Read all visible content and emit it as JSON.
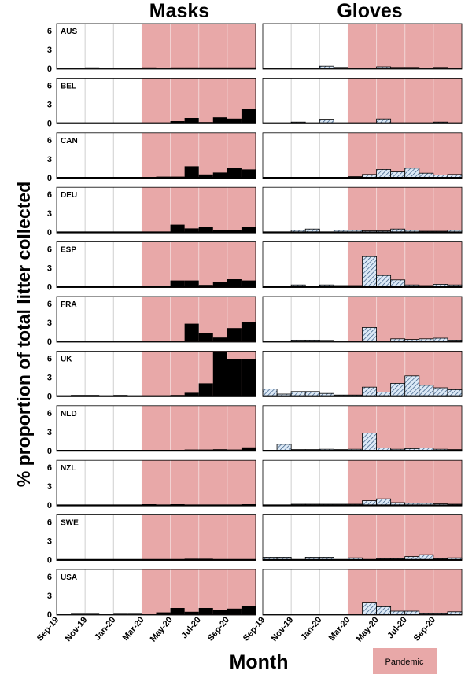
{
  "figure": {
    "ylabel": "% proportion of total litter collected",
    "xlabel": "Month",
    "legend_label": "Pandemic",
    "legend_placement": "bottom-right"
  },
  "colors": {
    "pandemic_shading": "#e8a8a8",
    "mask_bar": "#000000",
    "glove_bar_fill": "#dce9f6",
    "glove_bar_hatch": "#2a4f7a",
    "grid": "#cfcfcf",
    "frame": "#000000"
  },
  "chart_data": {
    "type": "bar",
    "panel_titles": [
      "Masks",
      "Gloves"
    ],
    "months": [
      "Sep-19",
      "Oct-19",
      "Nov-19",
      "Dec-19",
      "Jan-20",
      "Feb-20",
      "Mar-20",
      "Apr-20",
      "May-20",
      "Jun-20",
      "Jul-20",
      "Aug-20",
      "Sep-20",
      "Oct-20"
    ],
    "x_tick_labels": [
      "Sep-19",
      "Nov-19",
      "Jan-20",
      "Mar-20",
      "May-20",
      "Jul-20",
      "Sep-20"
    ],
    "y_ticks": [
      "0",
      "3",
      "6"
    ],
    "ylim": [
      0,
      7
    ],
    "pandemic_start": "Mar-20",
    "grid": true,
    "countries": [
      {
        "code": "AUS",
        "masks": [
          0,
          0,
          0.15,
          0,
          0,
          0,
          0.15,
          0,
          0.1,
          0.1,
          0.1,
          0.1,
          0.1,
          0.1
        ],
        "gloves": [
          0,
          0,
          0,
          0,
          0.35,
          0.15,
          0,
          0,
          0.25,
          0.15,
          0.15,
          0,
          0.15,
          0
        ]
      },
      {
        "code": "BEL",
        "masks": [
          0,
          0,
          0,
          0,
          0,
          0,
          0,
          0,
          0.3,
          0.8,
          0.1,
          0.9,
          0.7,
          2.3
        ],
        "gloves": [
          0,
          0,
          0.15,
          0,
          0.6,
          0,
          0,
          0,
          0.65,
          0,
          0,
          0,
          0.15,
          0
        ]
      },
      {
        "code": "CAN",
        "masks": [
          0,
          0,
          0,
          0,
          0,
          0,
          0,
          0.05,
          0.1,
          1.8,
          0.5,
          0.8,
          1.5,
          1.3
        ],
        "gloves": [
          0,
          0,
          0,
          0,
          0,
          0,
          0.05,
          0.5,
          1.3,
          0.9,
          1.5,
          0.7,
          0.4,
          0.5
        ]
      },
      {
        "code": "DEU",
        "masks": [
          0,
          0,
          0,
          0,
          0,
          0,
          0,
          0,
          1.2,
          0.6,
          0.9,
          0.3,
          0.3,
          0.8
        ],
        "gloves": [
          0,
          0,
          0.3,
          0.5,
          0,
          0.3,
          0.3,
          0.2,
          0.2,
          0.5,
          0.3,
          0.1,
          0.1,
          0.3
        ]
      },
      {
        "code": "ESP",
        "masks": [
          0,
          0,
          0,
          0,
          0,
          0,
          0,
          0,
          1.0,
          1.0,
          0.3,
          0.8,
          1.2,
          1.0
        ],
        "gloves": [
          0,
          0,
          0.3,
          0,
          0.3,
          0.2,
          0.2,
          4.8,
          1.8,
          1.1,
          0.3,
          0.2,
          0.4,
          0.3
        ]
      },
      {
        "code": "FRA",
        "masks": [
          0,
          0,
          0,
          0,
          0,
          0,
          0,
          0,
          0,
          2.8,
          1.3,
          0.6,
          2.1,
          3.1
        ],
        "gloves": [
          0,
          0,
          0.2,
          0.2,
          0.1,
          0,
          0,
          2.2,
          0,
          0.4,
          0.3,
          0.4,
          0.5,
          0.2
        ]
      },
      {
        "code": "UK",
        "masks": [
          0,
          0.1,
          0.1,
          0,
          0.1,
          0,
          0,
          0,
          0.1,
          0.5,
          2.0,
          7.0,
          5.8,
          5.8
        ],
        "gloves": [
          1.1,
          0.3,
          0.7,
          0.7,
          0.4,
          0.1,
          0.1,
          1.4,
          0.6,
          2.0,
          3.2,
          1.7,
          1.3,
          1.0
        ]
      },
      {
        "code": "NLD",
        "masks": [
          0,
          0,
          0,
          0,
          0,
          0,
          0,
          0,
          0,
          0.05,
          0.1,
          0.2,
          0.1,
          0.5
        ],
        "gloves": [
          0,
          1.0,
          0.1,
          0.1,
          0.2,
          0.1,
          0.2,
          2.8,
          0.4,
          0.2,
          0.3,
          0.4,
          0.2,
          0.1
        ]
      },
      {
        "code": "NZL",
        "masks": [
          0,
          0,
          0,
          0,
          0,
          0,
          0.1,
          0,
          0.1,
          0,
          0,
          0,
          0,
          0.1
        ],
        "gloves": [
          0,
          0,
          0.05,
          0.05,
          0.05,
          0.05,
          0.05,
          0.7,
          1.0,
          0.4,
          0.3,
          0.3,
          0.2,
          0.1
        ]
      },
      {
        "code": "SWE",
        "masks": [
          0,
          0,
          0,
          0,
          0,
          0,
          0,
          0,
          0,
          0.15,
          0.15,
          0,
          0,
          0
        ],
        "gloves": [
          0.4,
          0.4,
          0,
          0.4,
          0.4,
          0,
          0.3,
          0,
          0.1,
          0.1,
          0.5,
          0.8,
          0.1,
          0.3
        ]
      },
      {
        "code": "USA",
        "masks": [
          0,
          0.2,
          0.2,
          0,
          0.2,
          0.2,
          0,
          0.3,
          1.0,
          0.4,
          1.0,
          0.7,
          0.9,
          1.3
        ],
        "gloves": [
          0,
          0,
          0,
          0,
          0,
          0,
          0,
          1.8,
          1.2,
          0.5,
          0.5,
          0.2,
          0.2,
          0.4
        ]
      }
    ]
  }
}
